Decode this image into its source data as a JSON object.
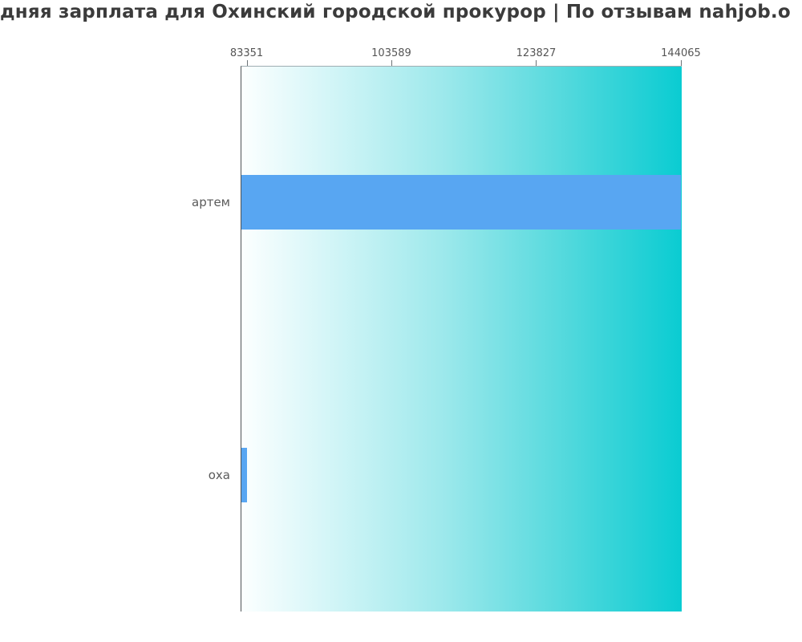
{
  "title": "дняя зарплата для Охинский городской прокурор | По отзывам nahjob.o",
  "colors": {
    "bar": "#58a6f2",
    "plot_gradient_left": "#fcffff",
    "plot_gradient_right": "#0accd2",
    "title_text": "#3b3b3b",
    "axis_text": "#555555",
    "spine": "#4e5356"
  },
  "chart_data": {
    "type": "bar",
    "orientation": "horizontal",
    "title": "дняя зарплата для Охинский городской прокурор | По отзывам nahjob.o",
    "categories": [
      "артем",
      "оха"
    ],
    "values": [
      144065,
      83351
    ],
    "x_ticks": [
      83351,
      103589,
      123827,
      144065
    ],
    "x_ticks_position": "top",
    "x_range": [
      82510,
      144180
    ],
    "xlabel": "",
    "ylabel": "",
    "grid": false,
    "legend": false,
    "bar_color": "#58a6f2",
    "plot_background": "horizontal gradient white to cyan"
  }
}
